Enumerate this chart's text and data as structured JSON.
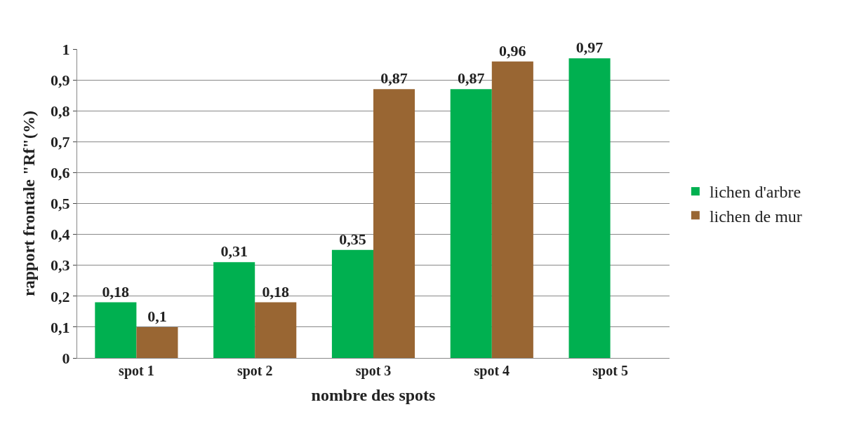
{
  "chart_data": {
    "type": "bar",
    "xlabel": "nombre des spots",
    "ylabel": "rapport frontale \"Rf\"(%)",
    "categories": [
      "spot 1",
      "spot 2",
      "spot 3",
      "spot 4",
      "spot 5"
    ],
    "series": [
      {
        "name": "lichen d'arbre",
        "color": "#00b050",
        "values": [
          0.18,
          0.31,
          0.35,
          0.87,
          0.97
        ],
        "value_labels": [
          "0,18",
          "0,31",
          "0,35",
          "0,87",
          "0,97"
        ]
      },
      {
        "name": "lichen de mur",
        "color": "#996633",
        "values": [
          0.1,
          0.18,
          0.87,
          0.96,
          null
        ],
        "value_labels": [
          "0,1",
          "0,18",
          "0,87",
          "0,96",
          null
        ]
      }
    ],
    "ylim": [
      0,
      1
    ],
    "yticks": [
      0,
      {
        "value": 0.1,
        "label": "0,1"
      },
      {
        "value": 0.2,
        "label": "0,2"
      },
      {
        "value": 0.3,
        "label": "0,3"
      },
      {
        "value": 0.4,
        "label": "0,4"
      },
      {
        "value": 0.5,
        "label": "0,5"
      },
      {
        "value": 0.6,
        "label": "0,6"
      },
      {
        "value": 0.7,
        "label": "0,7"
      },
      {
        "value": 0.8,
        "label": "0,8"
      },
      {
        "value": 0.9,
        "label": "0,9"
      },
      1
    ],
    "grid": "y",
    "legend": "right"
  }
}
